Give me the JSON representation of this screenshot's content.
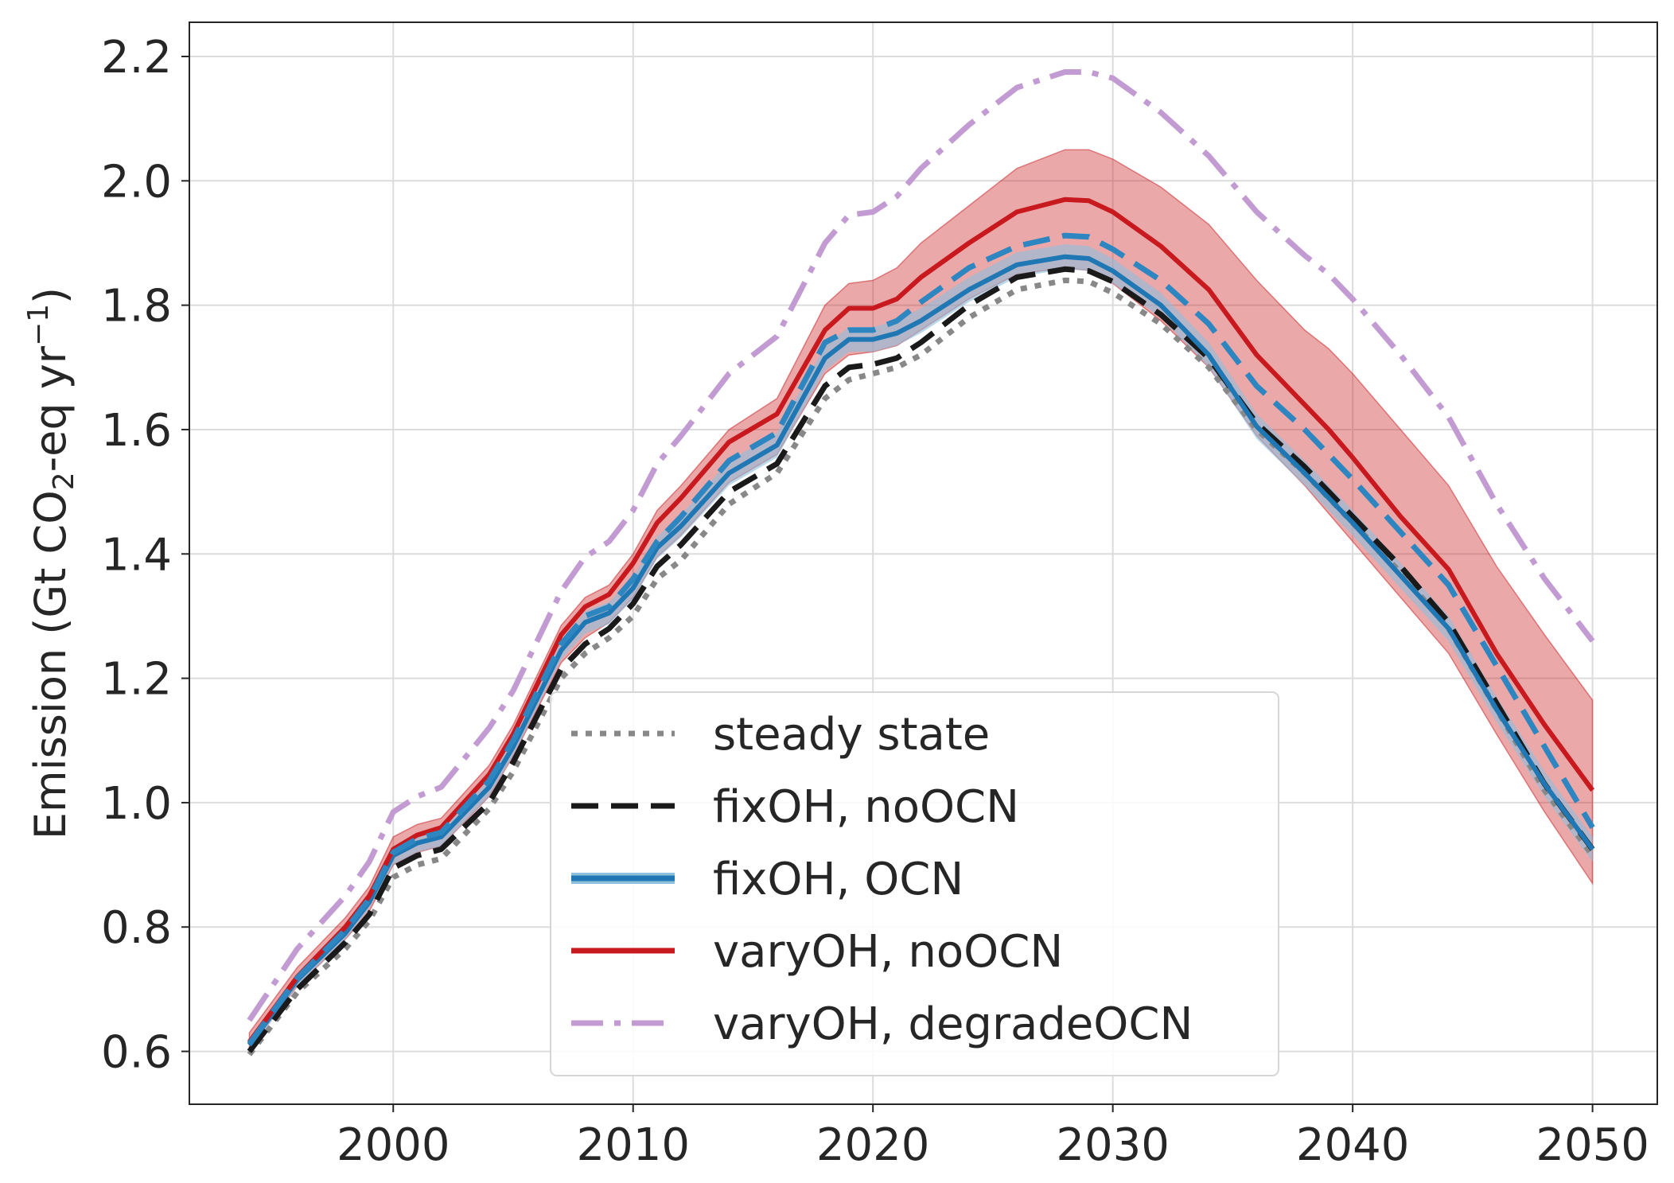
{
  "chart_data": {
    "type": "line",
    "title": "",
    "xlabel": "",
    "ylabel": {
      "prefix": "Emission (Gt CO",
      "sub": "2",
      "middle": "-eq yr",
      "sup": "−1",
      "suffix": ")"
    },
    "xlim": [
      1991.5,
      2052.7
    ],
    "ylim": [
      0.515,
      2.255
    ],
    "xticks": [
      2000,
      2010,
      2020,
      2030,
      2040,
      2050
    ],
    "xtick_labels": [
      "2000",
      "2010",
      "2020",
      "2030",
      "2040",
      "2050"
    ],
    "yticks": [
      0.6,
      0.8,
      1.0,
      1.2,
      1.4,
      1.6,
      1.8,
      2.0,
      2.2
    ],
    "ytick_labels": [
      "0.6",
      "0.8",
      "1.0",
      "1.2",
      "1.4",
      "1.6",
      "1.8",
      "2.0",
      "2.2"
    ],
    "grid": true,
    "legend_position": "lower-center",
    "x": [
      1994,
      1996,
      1998,
      1999,
      2000,
      2001,
      2002,
      2004,
      2005,
      2007,
      2008,
      2009,
      2010,
      2011,
      2012,
      2014,
      2016,
      2018,
      2019,
      2020,
      2021,
      2022,
      2024,
      2026,
      2028,
      2029,
      2030,
      2032,
      2034,
      2036,
      2038,
      2039,
      2040,
      2042,
      2044,
      2046,
      2048,
      2050
    ],
    "series": [
      {
        "name": "steady state",
        "color": "#888888",
        "style": "dotted",
        "values": [
          0.595,
          0.695,
          0.765,
          0.81,
          0.88,
          0.9,
          0.91,
          0.99,
          1.05,
          1.2,
          1.24,
          1.265,
          1.3,
          1.36,
          1.39,
          1.48,
          1.53,
          1.65,
          1.68,
          1.69,
          1.7,
          1.72,
          1.78,
          1.825,
          1.84,
          1.838,
          1.82,
          1.77,
          1.7,
          1.6,
          1.53,
          1.49,
          1.45,
          1.37,
          1.28,
          1.15,
          1.02,
          0.915
        ]
      },
      {
        "name": "fixOH, noOCN",
        "color": "#1a1a1a",
        "style": "dashed",
        "values": [
          0.6,
          0.7,
          0.775,
          0.82,
          0.895,
          0.915,
          0.925,
          1.0,
          1.065,
          1.215,
          1.255,
          1.28,
          1.32,
          1.38,
          1.415,
          1.5,
          1.545,
          1.67,
          1.7,
          1.705,
          1.715,
          1.74,
          1.8,
          1.845,
          1.858,
          1.855,
          1.838,
          1.785,
          1.715,
          1.61,
          1.54,
          1.5,
          1.46,
          1.38,
          1.29,
          1.16,
          1.03,
          0.925
        ]
      },
      {
        "name": "fixOH, OCN",
        "color": "#1f77b4",
        "style": "solid",
        "band": [
          0.01,
          0.01,
          0.01,
          0.01,
          0.015,
          0.015,
          0.015,
          0.015,
          0.015,
          0.015,
          0.018,
          0.018,
          0.018,
          0.018,
          0.018,
          0.02,
          0.02,
          0.02,
          0.02,
          0.02,
          0.02,
          0.02,
          0.02,
          0.02,
          0.02,
          0.02,
          0.02,
          0.02,
          0.02,
          0.02,
          0.02,
          0.02,
          0.02,
          0.02,
          0.02,
          0.02,
          0.02,
          0.02
        ],
        "values": [
          0.61,
          0.715,
          0.79,
          0.84,
          0.915,
          0.935,
          0.945,
          1.025,
          1.09,
          1.245,
          1.29,
          1.305,
          1.345,
          1.41,
          1.445,
          1.53,
          1.575,
          1.715,
          1.745,
          1.745,
          1.755,
          1.775,
          1.825,
          1.865,
          1.878,
          1.875,
          1.855,
          1.8,
          1.72,
          1.605,
          1.53,
          1.49,
          1.45,
          1.365,
          1.28,
          1.15,
          1.03,
          0.925
        ]
      },
      {
        "name": "",
        "color": "#2e86c1",
        "style": "dashed",
        "values": [
          0.612,
          0.718,
          0.795,
          0.845,
          0.92,
          0.942,
          0.952,
          1.035,
          1.1,
          1.255,
          1.3,
          1.315,
          1.36,
          1.42,
          1.46,
          1.55,
          1.595,
          1.74,
          1.76,
          1.76,
          1.775,
          1.805,
          1.86,
          1.895,
          1.912,
          1.91,
          1.89,
          1.84,
          1.77,
          1.67,
          1.6,
          1.56,
          1.52,
          1.435,
          1.35,
          1.22,
          1.09,
          0.96
        ]
      },
      {
        "name": "varyOH, noOCN",
        "color": "#c8191e",
        "style": "solid",
        "band_lower": [
          0.605,
          0.705,
          0.78,
          0.825,
          0.9,
          0.92,
          0.93,
          1.01,
          1.075,
          1.225,
          1.265,
          1.29,
          1.33,
          1.395,
          1.43,
          1.515,
          1.56,
          1.69,
          1.72,
          1.725,
          1.735,
          1.76,
          1.81,
          1.85,
          1.86,
          1.856,
          1.835,
          1.775,
          1.7,
          1.59,
          1.51,
          1.465,
          1.42,
          1.33,
          1.24,
          1.11,
          0.985,
          0.87
        ],
        "band_upper": [
          0.63,
          0.735,
          0.815,
          0.865,
          0.945,
          0.965,
          0.975,
          1.06,
          1.125,
          1.285,
          1.33,
          1.35,
          1.4,
          1.47,
          1.51,
          1.6,
          1.65,
          1.8,
          1.835,
          1.84,
          1.86,
          1.9,
          1.96,
          2.02,
          2.05,
          2.05,
          2.035,
          1.99,
          1.93,
          1.84,
          1.76,
          1.73,
          1.69,
          1.6,
          1.51,
          1.38,
          1.27,
          1.165
        ],
        "values": [
          0.615,
          0.72,
          0.8,
          0.85,
          0.925,
          0.948,
          0.96,
          1.045,
          1.11,
          1.27,
          1.315,
          1.335,
          1.385,
          1.45,
          1.49,
          1.58,
          1.625,
          1.76,
          1.795,
          1.795,
          1.81,
          1.845,
          1.9,
          1.95,
          1.97,
          1.968,
          1.95,
          1.895,
          1.825,
          1.72,
          1.64,
          1.6,
          1.555,
          1.46,
          1.375,
          1.24,
          1.125,
          1.02
        ]
      },
      {
        "name": "varyOH, degradeOCN",
        "color": "#c39bd3",
        "style": "dashdot",
        "values": [
          0.65,
          0.765,
          0.85,
          0.905,
          0.985,
          1.01,
          1.025,
          1.12,
          1.18,
          1.34,
          1.395,
          1.42,
          1.47,
          1.545,
          1.59,
          1.69,
          1.75,
          1.9,
          1.945,
          1.95,
          1.975,
          2.02,
          2.09,
          2.15,
          2.175,
          2.175,
          2.165,
          2.11,
          2.04,
          1.95,
          1.88,
          1.85,
          1.81,
          1.72,
          1.62,
          1.48,
          1.36,
          1.26
        ]
      }
    ]
  }
}
